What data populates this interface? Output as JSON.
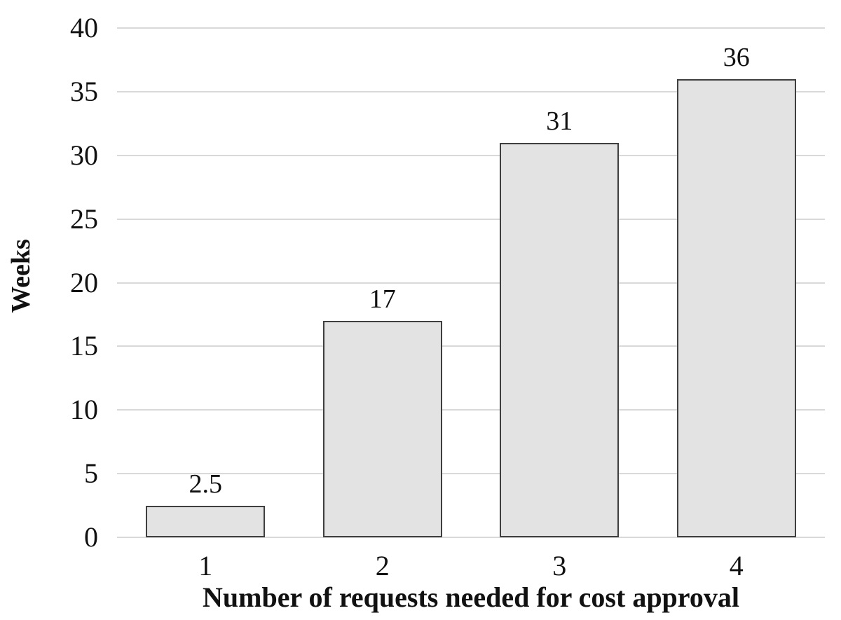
{
  "chart_data": {
    "type": "bar",
    "title": "",
    "categories": [
      "1",
      "2",
      "3",
      "4"
    ],
    "values": [
      2.5,
      17,
      31,
      36
    ],
    "value_labels": [
      "2.5",
      "17",
      "31",
      "36"
    ],
    "xlabel": "Number of requests needed for cost approval",
    "ylabel": "Weeks",
    "ylim": [
      0,
      40
    ],
    "yticks": [
      0,
      5,
      10,
      15,
      20,
      25,
      30,
      35,
      40
    ],
    "grid": "horizontal",
    "legend_position": "none",
    "colors": {
      "bar_fill": "#e3e3e4",
      "bar_border": "#3f3f3f",
      "gridline": "#d9d9d9",
      "text": "#111111",
      "background": "#ffffff"
    }
  }
}
